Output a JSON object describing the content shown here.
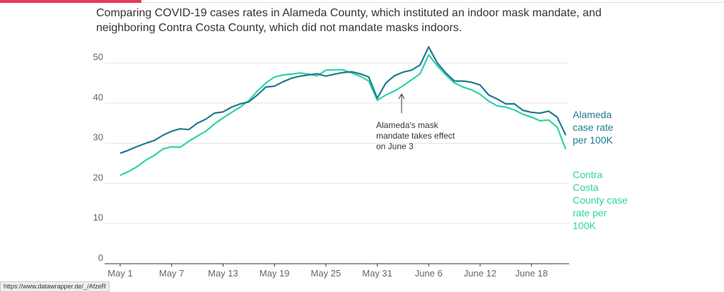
{
  "chart_data": {
    "type": "line",
    "title": "Comparing COVID-19 cases rates in Alameda County, which instituted an indoor mask mandate, and neighboring Contra Costa County, which did not mandate masks indoors.",
    "categories": [
      "May 1",
      null,
      null,
      null,
      null,
      null,
      "May 7",
      null,
      null,
      null,
      null,
      null,
      "May 13",
      null,
      null,
      null,
      null,
      null,
      "May 19",
      null,
      null,
      null,
      null,
      null,
      "May 25",
      null,
      null,
      null,
      null,
      null,
      "May 31",
      null,
      null,
      null,
      null,
      null,
      "June 6",
      null,
      null,
      null,
      null,
      null,
      "June 12",
      null,
      null,
      null,
      null,
      null,
      "June 18",
      null,
      null,
      null,
      null
    ],
    "series": [
      {
        "name": "Alameda case rate per 100K",
        "color": "#1f7a92",
        "values": [
          27.5,
          28.3,
          29.2,
          30,
          30.7,
          32,
          33,
          33.6,
          33.4,
          35,
          36,
          37.5,
          37.8,
          39,
          39.8,
          40.3,
          42,
          44,
          44.2,
          45.3,
          46.2,
          46.7,
          47,
          47.3,
          46.7,
          47.2,
          47.6,
          47.8,
          47.3,
          46.5,
          41.2,
          45,
          46.8,
          47.7,
          48.2,
          49.5,
          54,
          50,
          47.5,
          45.5,
          45.5,
          45.2,
          44.5,
          42,
          41,
          39.8,
          39.8,
          38.2,
          37.7,
          37.5,
          38,
          36.5,
          32
        ]
      },
      {
        "name": "Contra Costa County case rate per 100K",
        "color": "#2ed3a3",
        "values": [
          22,
          23,
          24.2,
          25.8,
          27,
          28.6,
          29.1,
          29,
          30.5,
          31.8,
          33,
          34.8,
          36.3,
          37.7,
          39,
          40.6,
          43,
          45,
          46.5,
          47,
          47.2,
          47.5,
          47.2,
          46.8,
          48.2,
          48.3,
          48.3,
          47.5,
          46.7,
          45.5,
          40.7,
          42,
          43,
          44.3,
          45.8,
          47.3,
          52,
          49.3,
          47,
          45,
          44,
          43.3,
          42.2,
          40.5,
          39.3,
          39,
          38.3,
          37.2,
          36.5,
          35.6,
          35.8,
          34,
          28.5
        ]
      }
    ],
    "annotation": {
      "lines": [
        "Alameda's mask",
        "mandate takes effect",
        "on June 3"
      ]
    },
    "ylim": [
      0,
      55
    ],
    "yticks": [
      0,
      10,
      20,
      30,
      40,
      50
    ],
    "grid": true
  },
  "status_bar": "https://www.datawrapper.de/_/AfzeR"
}
